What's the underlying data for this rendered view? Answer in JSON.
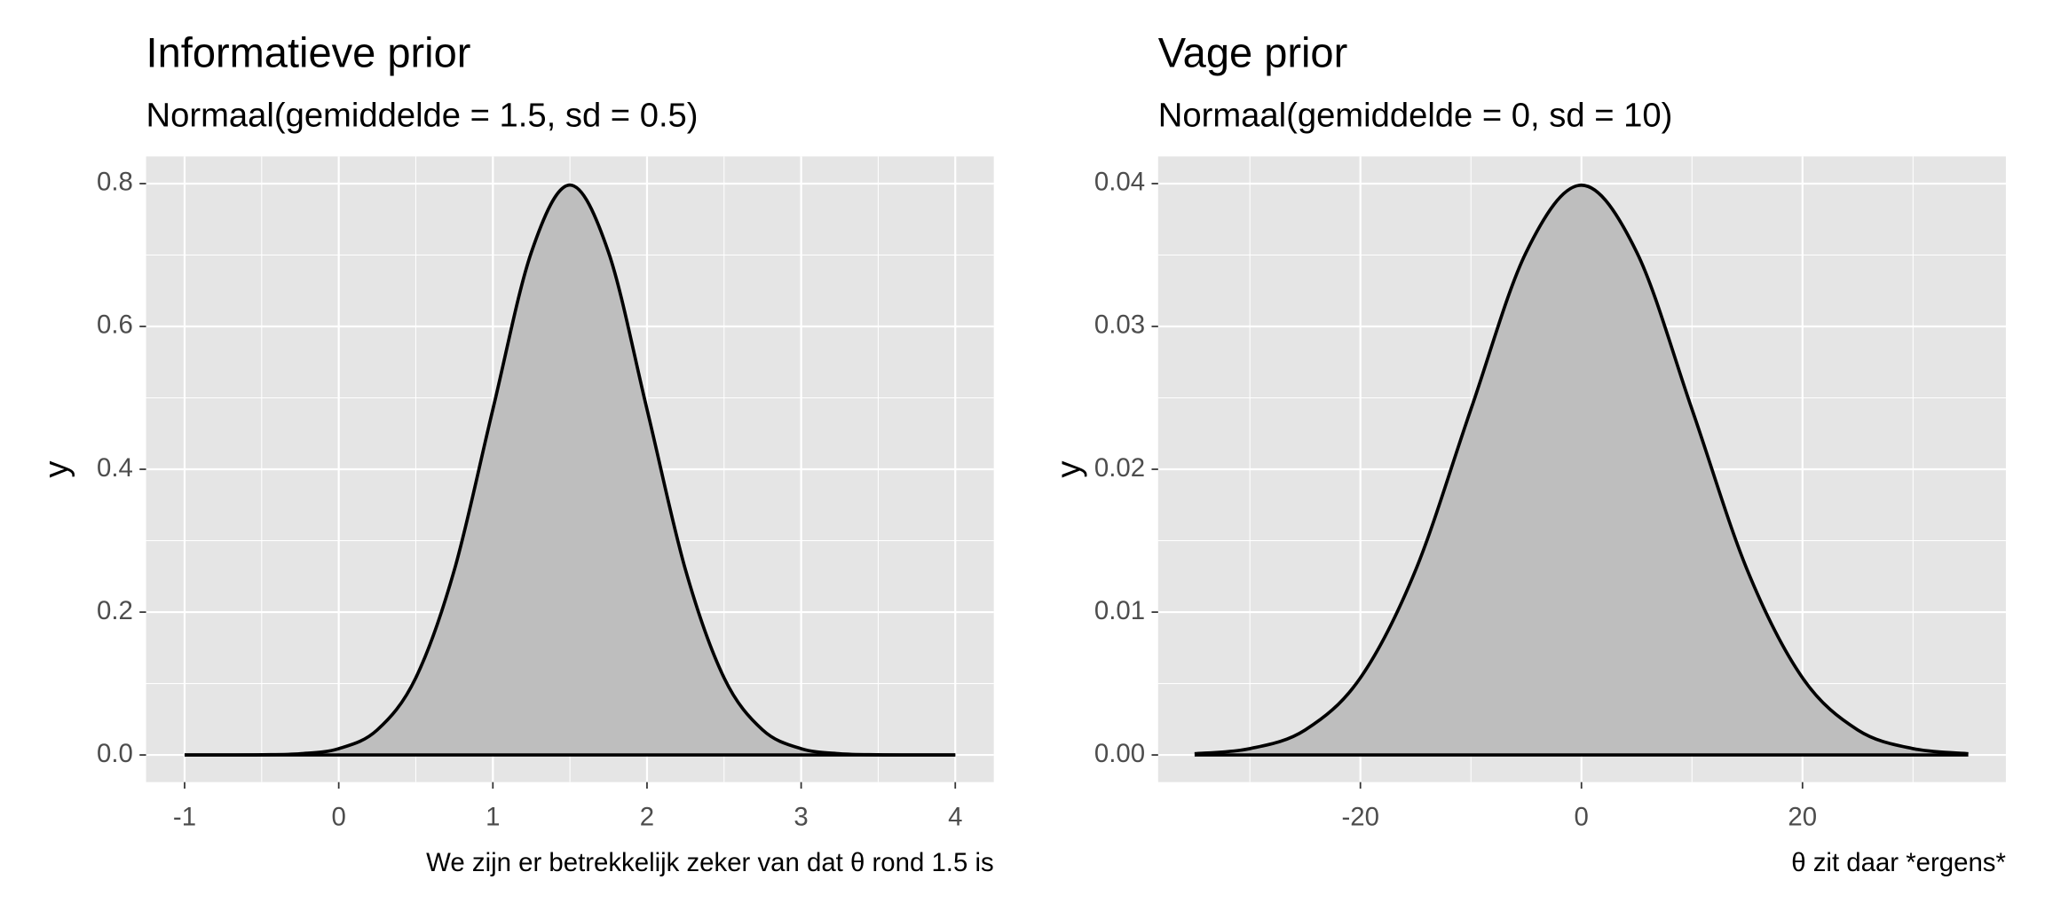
{
  "chart_data": [
    {
      "type": "area",
      "title": "Informatieve prior",
      "subtitle": "Normaal(gemiddelde = 1.5, sd = 0.5)",
      "x_label": "We zijn er betrekkelijk zeker van dat θ rond 1.5 is",
      "y_label": "y",
      "x": [
        -1,
        -0.75,
        -0.5,
        -0.25,
        0,
        0.25,
        0.5,
        0.75,
        1,
        1.25,
        1.5,
        1.75,
        2,
        2.25,
        2.5,
        2.75,
        3,
        3.25,
        3.5,
        3.75,
        4
      ],
      "values": [
        3e-06,
        3.2e-05,
        0.000268,
        0.00175,
        0.00886,
        0.0351,
        0.108,
        0.259,
        0.484,
        0.704,
        0.798,
        0.704,
        0.484,
        0.259,
        0.108,
        0.0351,
        0.00886,
        0.00175,
        0.000268,
        3.2e-05,
        3e-06
      ],
      "color": "#bebebe",
      "line_color": "#000000",
      "xlim": [
        -1.25,
        4.25
      ],
      "ylim": [
        -0.038,
        0.838
      ],
      "xticks": [
        -1,
        0,
        1,
        2,
        3,
        4
      ],
      "yticks": [
        {
          "value": 0,
          "label": "0.0"
        },
        {
          "value": 0.2,
          "label": "0.2"
        },
        {
          "value": 0.4,
          "label": "0.4"
        },
        {
          "value": 0.6,
          "label": "0.6"
        },
        {
          "value": 0.8,
          "label": "0.8"
        }
      ],
      "grid": true
    },
    {
      "type": "area",
      "title": "Vage prior",
      "subtitle": "Normaal(gemiddelde = 0, sd = 10)",
      "x_label": "θ zit daar *ergens*",
      "y_label": "y",
      "x": [
        -35,
        -30,
        -25,
        -20,
        -15,
        -10,
        -5,
        0,
        5,
        10,
        15,
        20,
        25,
        30,
        35
      ],
      "values": [
        8.73e-05,
        0.000443,
        0.00175,
        0.0054,
        0.01295,
        0.0242,
        0.0352,
        0.03989,
        0.0352,
        0.0242,
        0.01295,
        0.0054,
        0.00175,
        0.000443,
        8.73e-05
      ],
      "color": "#bebebe",
      "line_color": "#000000",
      "xlim": [
        -38.3,
        38.4
      ],
      "ylim": [
        -0.0019,
        0.0419
      ],
      "xticks": [
        -20,
        0,
        20
      ],
      "yticks": [
        {
          "value": 0,
          "label": "0.00"
        },
        {
          "value": 0.01,
          "label": "0.01"
        },
        {
          "value": 0.02,
          "label": "0.02"
        },
        {
          "value": 0.03,
          "label": "0.03"
        },
        {
          "value": 0.04,
          "label": "0.04"
        }
      ],
      "grid": true
    }
  ]
}
